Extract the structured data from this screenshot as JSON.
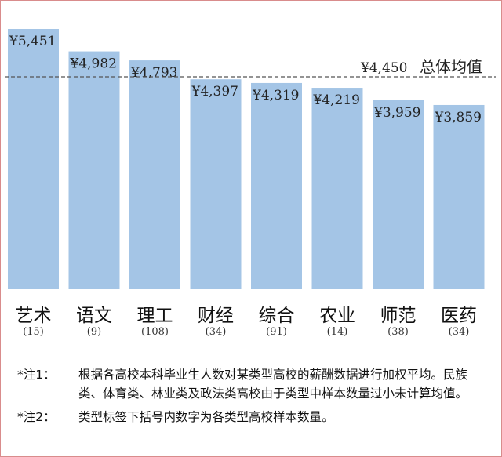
{
  "chart_data": {
    "type": "bar",
    "categories": [
      "艺术",
      "语文",
      "理工",
      "财经",
      "综合",
      "农业",
      "师范",
      "医药"
    ],
    "sample_counts": [
      "(15)",
      "(9)",
      "(108)",
      "(34)",
      "(91)",
      "(14)",
      "(38)",
      "(34)"
    ],
    "values": [
      5451,
      4982,
      4793,
      4397,
      4319,
      4219,
      3959,
      3859
    ],
    "value_labels": [
      "¥5,451",
      "¥4,982",
      "¥4,793",
      "¥4,397",
      "¥4,319",
      "¥4,219",
      "¥3,959",
      "¥3,859"
    ],
    "ylim": [
      0,
      5451
    ],
    "bar_color": "#a4c5e6",
    "reference_line": {
      "value": 4450,
      "value_label": "¥4,450",
      "label": "总体均值",
      "style": "dashed",
      "color": "#555555"
    },
    "grid": false,
    "legend": "none"
  },
  "notes": [
    {
      "key": "*注1：",
      "text": "根据各高校本科毕业生人数对某类型高校的薪酬数据进行加权平均。民族类、体育类、林业类及政法类高校由于类型中样本数量过小未计算均值。"
    },
    {
      "key": "*注2：",
      "text": "类型标签下括号内数字为各类型高校样本数量。"
    }
  ],
  "frame_color": "#d98c8c"
}
